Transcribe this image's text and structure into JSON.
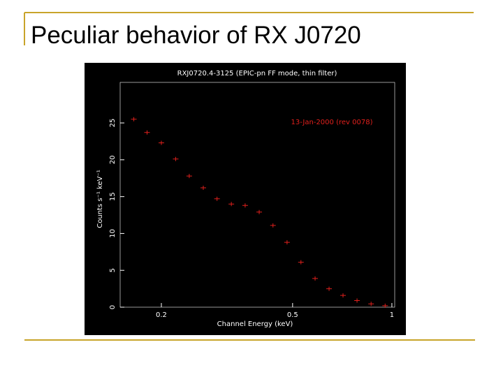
{
  "slide": {
    "title": "Peculiar behavior of RX J0720"
  },
  "chart_data": {
    "type": "scatter",
    "title": "RXJ0720.4-3125 (EPIC-pn FF mode, thin filter)",
    "annotation": "13-Jan-2000 (rev 0078)",
    "x_label": "Channel Energy (keV)",
    "y_label": "Counts s⁻¹ keV⁻¹",
    "xscale": "log",
    "xlim": [
      0.15,
      1.02
    ],
    "xticks": [
      0.2,
      0.5,
      1
    ],
    "ylim": [
      0,
      30.5
    ],
    "yticks": [
      0,
      5,
      10,
      15,
      20,
      25
    ],
    "series": [
      {
        "name": "13-Jan-2000 (rev 0078)",
        "color": "#e0201c",
        "x": [
          0.165,
          0.181,
          0.2,
          0.221,
          0.243,
          0.268,
          0.295,
          0.326,
          0.359,
          0.396,
          0.436,
          0.481,
          0.53,
          0.585,
          0.645,
          0.711,
          0.784,
          0.865,
          0.954
        ],
        "values": [
          25.5,
          23.7,
          22.3,
          20.1,
          17.8,
          16.2,
          14.7,
          14.0,
          13.8,
          12.9,
          11.1,
          8.8,
          6.1,
          3.9,
          2.5,
          1.6,
          0.9,
          0.45,
          0.2
        ]
      }
    ]
  }
}
